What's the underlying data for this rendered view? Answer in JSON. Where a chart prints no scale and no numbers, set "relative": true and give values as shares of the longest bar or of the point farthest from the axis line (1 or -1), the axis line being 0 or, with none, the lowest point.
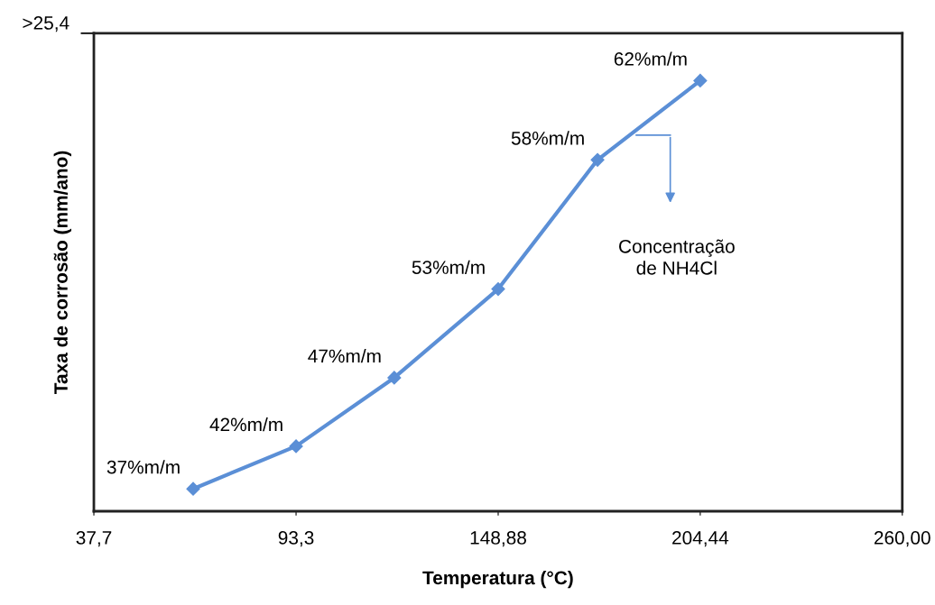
{
  "chart_data": {
    "type": "line",
    "relative": true,
    "xlabel": "Temperatura (°C)",
    "ylabel": "Taxa de corrosão (mm/ano)",
    "x": [
      65.0,
      93.3,
      120.3,
      148.88,
      176.2,
      204.44
    ],
    "series": [
      {
        "color": "#5b8fd6",
        "values": [
          0.052,
          0.151,
          0.31,
          0.516,
          0.816,
          1.0
        ]
      }
    ],
    "xlim": [
      37.7,
      260.0
    ],
    "xticks": [
      {
        "value": 37.7,
        "label": "37,7"
      },
      {
        "value": 93.3,
        "label": "93,3"
      },
      {
        "value": 148.88,
        "label": "148,88"
      },
      {
        "value": 204.44,
        "label": "204,44"
      },
      {
        "value": 260.0,
        "label": "260,00"
      }
    ],
    "marker": "diamond",
    "line_style": "solid",
    "annotations": [
      ">25,4",
      "Concentração\nde NH4Cl",
      {
        "text": "37%m/m",
        "x": 65.0,
        "y": 0.052
      },
      {
        "text": "42%m/m",
        "x": 93.3,
        "y": 0.151
      },
      {
        "text": "47%m/m",
        "x": 120.3,
        "y": 0.31
      },
      {
        "text": "53%m/m",
        "x": 148.88,
        "y": 0.516
      },
      {
        "text": "58%m/m",
        "x": 176.2,
        "y": 0.816
      },
      {
        "text": "62%m/m",
        "x": 204.44,
        "y": 1.0
      }
    ]
  }
}
